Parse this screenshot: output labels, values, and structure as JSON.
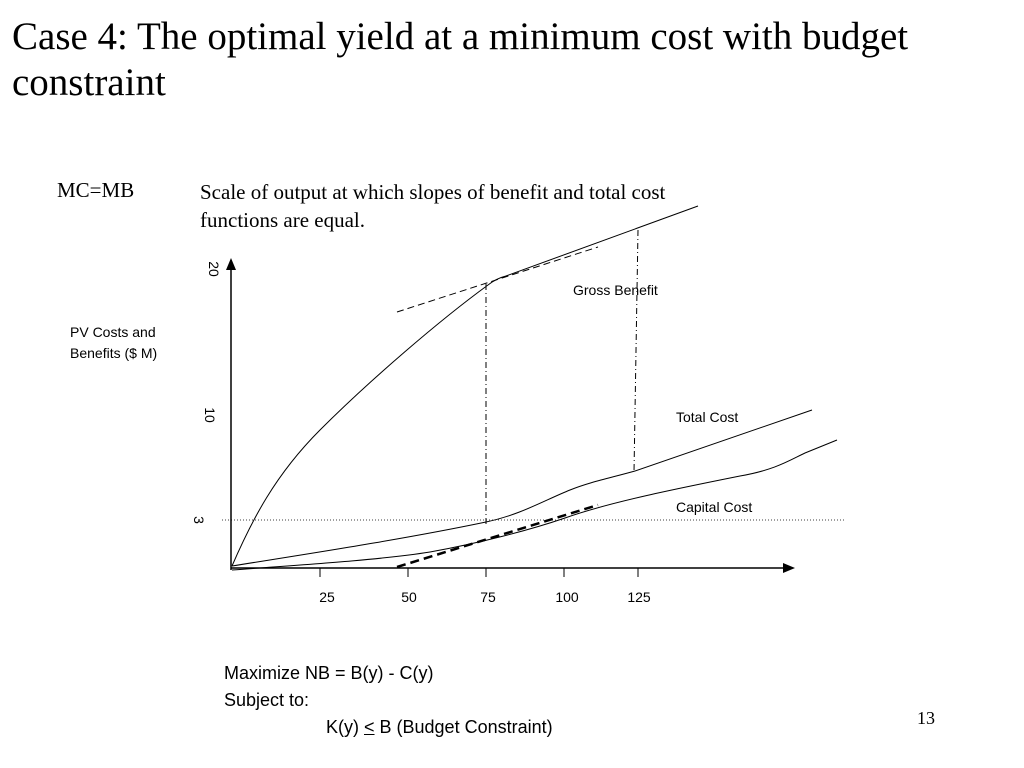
{
  "slide": {
    "title": "Case 4: The optimal yield at a minimum cost with budget constraint",
    "page_number": "13"
  },
  "annotation": {
    "term": "MC=MB",
    "definition": "Scale of output at which slopes of benefit and total cost functions are equal."
  },
  "diagram": {
    "y_axis_label": "PV Costs and Benefits ($ M)",
    "y_ticks": [
      "20",
      "10",
      "3"
    ],
    "x_ticks": [
      "25",
      "50",
      "75",
      "100",
      "125"
    ],
    "curve_labels": {
      "gross_benefit": "Gross Benefit",
      "total_cost": "Total Cost",
      "capital_cost": "Capital Cost"
    }
  },
  "formula": {
    "line1": "Maximize NB = B(y) - C(y)",
    "line2": "Subject to:",
    "line3_k": "K(y) ",
    "line3_le": "<",
    "line3_b": " B (Budget Constraint)"
  }
}
